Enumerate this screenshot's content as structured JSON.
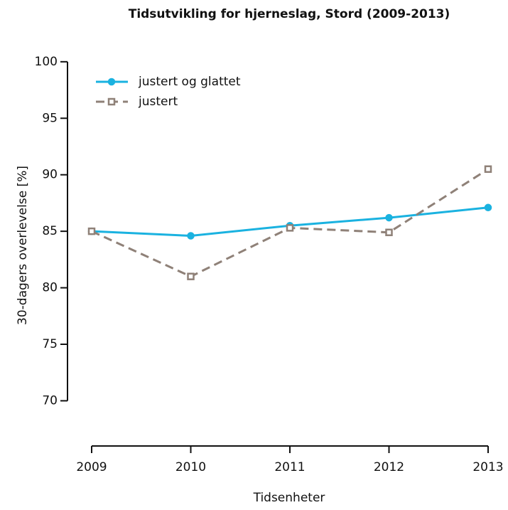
{
  "chart_data": {
    "type": "line",
    "title": "Tidsutvikling for hjerneslag, Stord (2009-2013)",
    "x_label": "Tidsenheter",
    "y_label": "30-dagers overlevelse [%]",
    "x": [
      2009,
      2010,
      2011,
      2012,
      2013
    ],
    "series": [
      {
        "name": "justert og glattet",
        "color": "#1ab2e0",
        "line_style": "solid",
        "marker": "circle",
        "values": [
          85.0,
          84.6,
          85.5,
          86.2,
          87.1
        ]
      },
      {
        "name": "justert",
        "color": "#8f8178",
        "line_style": "dashed",
        "marker": "square",
        "values": [
          85.0,
          81.0,
          85.3,
          84.9,
          90.5
        ]
      }
    ],
    "xlim": [
      2009,
      2013
    ],
    "xticks": [
      2009,
      2010,
      2011,
      2012,
      2013
    ],
    "ylim": [
      66,
      101.5
    ],
    "yticks": [
      70,
      75,
      80,
      85,
      90,
      95,
      100
    ],
    "legend": "top-left"
  }
}
